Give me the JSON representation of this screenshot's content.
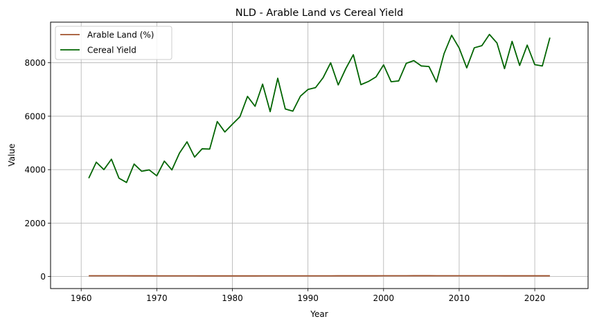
{
  "chart_data": {
    "type": "line",
    "title": "NLD - Arable Land vs Cereal Yield",
    "xlabel": "Year",
    "ylabel": "Value",
    "xlim": [
      1955.95,
      2027.05
    ],
    "ylim": [
      -450,
      9520
    ],
    "xticks": [
      1960,
      1970,
      1980,
      1990,
      2000,
      2010,
      2020
    ],
    "yticks": [
      0,
      2000,
      4000,
      6000,
      8000
    ],
    "grid": true,
    "legend_position": "top-left",
    "x": [
      1961,
      1962,
      1963,
      1964,
      1965,
      1966,
      1967,
      1968,
      1969,
      1970,
      1971,
      1972,
      1973,
      1974,
      1975,
      1976,
      1977,
      1978,
      1979,
      1980,
      1981,
      1982,
      1983,
      1984,
      1985,
      1986,
      1987,
      1988,
      1989,
      1990,
      1991,
      1992,
      1993,
      1994,
      1995,
      1996,
      1997,
      1998,
      1999,
      2000,
      2001,
      2002,
      2003,
      2004,
      2005,
      2006,
      2007,
      2008,
      2009,
      2010,
      2011,
      2012,
      2013,
      2014,
      2015,
      2016,
      2017,
      2018,
      2019,
      2020,
      2021,
      2022
    ],
    "series": [
      {
        "name": "Arable Land (%)",
        "color": "#a0522d",
        "values": [
          29.8,
          29.5,
          29.2,
          28.9,
          28.6,
          28.2,
          27.8,
          27.4,
          27.0,
          26.5,
          26.0,
          25.6,
          25.4,
          25.2,
          25.0,
          24.8,
          24.6,
          24.5,
          24.5,
          24.4,
          24.5,
          24.6,
          24.8,
          25.0,
          25.2,
          25.4,
          25.5,
          25.6,
          25.8,
          26.0,
          26.2,
          26.5,
          26.7,
          27.0,
          27.2,
          27.4,
          27.6,
          27.8,
          28.0,
          28.2,
          28.6,
          29.0,
          29.5,
          30.0,
          30.2,
          30.0,
          29.8,
          29.6,
          29.4,
          29.2,
          29.0,
          28.8,
          28.6,
          28.4,
          28.2,
          28.0,
          27.8,
          27.6,
          27.4,
          27.3,
          27.2,
          27.0
        ]
      },
      {
        "name": "Cereal Yield",
        "color": "#006400",
        "values": [
          3680,
          4280,
          4000,
          4390,
          3680,
          3520,
          4210,
          3940,
          3990,
          3770,
          4320,
          3990,
          4620,
          5040,
          4470,
          4780,
          4770,
          5800,
          5410,
          5700,
          5980,
          6740,
          6370,
          7200,
          6170,
          7420,
          6270,
          6190,
          6750,
          7000,
          7070,
          7440,
          8000,
          7170,
          7780,
          8300,
          7180,
          7300,
          7470,
          7920,
          7290,
          7320,
          7980,
          8080,
          7880,
          7860,
          7280,
          8340,
          9030,
          8550,
          7810,
          8560,
          8640,
          9060,
          8740,
          7780,
          8800,
          7900,
          8660,
          7930,
          7880,
          8940
        ]
      }
    ]
  }
}
